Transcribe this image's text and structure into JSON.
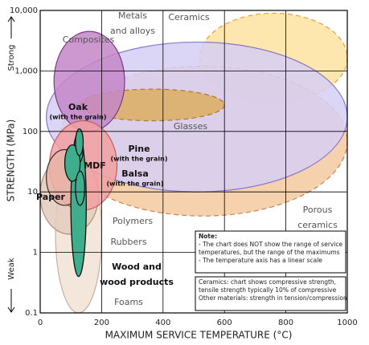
{
  "chart_data": {
    "type": "region",
    "xlabel": "MAXIMUM SERVICE TEMPERATURE (°C)",
    "ylabel": "STRENGTH (MPa)",
    "strong_label": "Strong",
    "weak_label": "Weak",
    "xlim": [
      0,
      1000
    ],
    "ylim": [
      0.1,
      10000
    ],
    "log_y": true,
    "grid": true,
    "xticks": [
      0,
      200,
      400,
      600,
      800,
      1000
    ],
    "yticks": [
      {
        "value": 0.1,
        "label": "0.1"
      },
      1,
      10,
      100,
      {
        "value": 1000,
        "label": "1,000"
      },
      {
        "value": 10000,
        "label": "10,000"
      }
    ],
    "regions": [
      {
        "label": [
          "Ceramics"
        ],
        "color": "#fde3a0",
        "stroke": "#e8a040",
        "dashed": true,
        "x": [
          520,
          1000
        ],
        "y": [
          300,
          9000
        ]
      },
      {
        "label": [
          "Porous",
          "ceramics"
        ],
        "color": "#f5c9a0",
        "stroke": "#d08050",
        "dashed": true,
        "x": [
          60,
          1000
        ],
        "y": [
          4,
          1200
        ]
      },
      {
        "label": [
          "Metals",
          "and alloys"
        ],
        "color": "#d6cff5",
        "stroke": "#8a78c8",
        "dashed": false,
        "x": [
          20,
          1000
        ],
        "y": [
          10,
          3000
        ]
      },
      {
        "label": [
          "Glasses"
        ],
        "color": "#dcae60",
        "stroke": "#b07830",
        "dashed": true,
        "x": [
          130,
          600
        ],
        "y": [
          150,
          500
        ]
      },
      {
        "label": [
          "Composites"
        ],
        "color": "#c486c8",
        "stroke": "#7a3c80",
        "dashed": false,
        "x": [
          45,
          275
        ],
        "y": [
          100,
          4500
        ]
      },
      {
        "label": [
          "Foams"
        ],
        "color": "#f1e2d4",
        "stroke": "#c8b09a",
        "dashed": false,
        "x": [
          50,
          200
        ],
        "y": [
          0.1,
          40
        ]
      },
      {
        "label": [
          "Rubbers"
        ],
        "color": "#e3cbbc",
        "stroke": "#b0907c",
        "dashed": false,
        "x": [
          0,
          190
        ],
        "y": [
          2,
          40
        ]
      },
      {
        "label": [
          "Polymers"
        ],
        "color": "#f2a0a0",
        "stroke": "#c06060",
        "dashed": false,
        "x": [
          30,
          250
        ],
        "y": [
          5,
          150
        ]
      },
      {
        "label": [
          "Paper"
        ],
        "color": "#e7b5a8",
        "stroke": "#333333",
        "dashed": false,
        "x": [
          20,
          140
        ],
        "y": [
          6,
          50
        ]
      },
      {
        "label": [
          "Wood and",
          "wood products"
        ],
        "color": "#3fae8c",
        "stroke": "#111111",
        "dashed": false,
        "x": [
          100,
          150
        ],
        "y": [
          0.4,
          90
        ]
      },
      {
        "label": [
          "Oak",
          "(with the grain)"
        ],
        "color": "#3fae8c",
        "stroke": "#111111",
        "dashed": false,
        "x": [
          110,
          140
        ],
        "y": [
          30,
          90
        ]
      },
      {
        "label": [
          "MDF"
        ],
        "color": "#3fae8c",
        "stroke": "#111111",
        "dashed": false,
        "x": [
          80,
          130
        ],
        "y": [
          15,
          60
        ]
      },
      {
        "label": [
          "Pine",
          "(with the grain)"
        ],
        "color": "#3fae8c",
        "stroke": "#111111",
        "dashed": false,
        "x": [
          115,
          140
        ],
        "y": [
          40,
          110
        ]
      },
      {
        "label": [
          "Balsa",
          "(with the grain)"
        ],
        "color": "#3fae8c",
        "stroke": "#111111",
        "dashed": false,
        "x": [
          115,
          145
        ],
        "y": [
          6,
          22
        ]
      }
    ],
    "notes": [
      [
        "Note:",
        "- The chart does NOT show the range of service",
        "  temperatures, but the range of the maximums",
        "- The temperature axis has a linear scale"
      ],
      [
        "Ceramics: chart shows compressive strength,",
        "tensile strength typically 10% of compressive",
        "Other materials: strength in tension/compression"
      ]
    ]
  }
}
